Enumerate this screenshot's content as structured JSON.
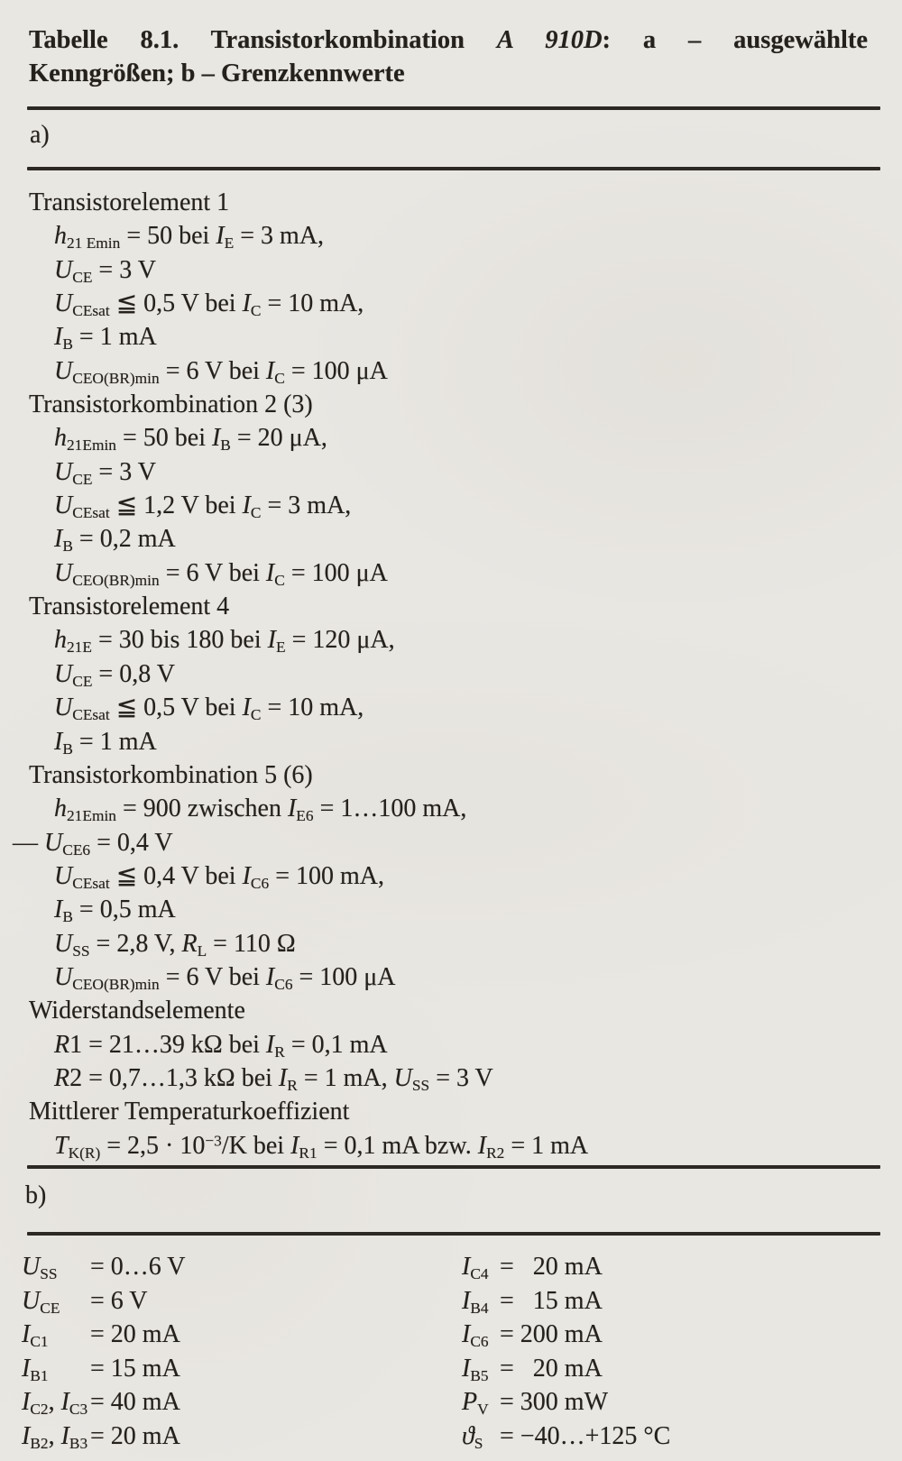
{
  "page": {
    "paper_color": "#e9e7e2",
    "ink_color": "#24211d"
  },
  "caption": {
    "line1_num": "Tabelle 8.1.",
    "line1_text": "Transistorkombination",
    "line1_device": "A 910D",
    "line1_rest": ": a – ausgewählte",
    "line2": "Kenngrößen; b – Grenzkennwerte"
  },
  "section_a": {
    "label": "a)",
    "lines": [
      {
        "style": "head",
        "tokens": [
          [
            "n",
            "Transistorelement 1"
          ]
        ]
      },
      {
        "style": "ind",
        "tokens": [
          [
            "i",
            "h"
          ],
          [
            "sub",
            "21 Emin"
          ],
          [
            "n",
            " = 50 bei "
          ],
          [
            "i",
            "I"
          ],
          [
            "sub",
            "E"
          ],
          [
            "n",
            " = 3 mA,"
          ]
        ]
      },
      {
        "style": "ind",
        "tokens": [
          [
            "i",
            "U"
          ],
          [
            "sub",
            "CE"
          ],
          [
            "n",
            " = 3 V"
          ]
        ]
      },
      {
        "style": "ind",
        "tokens": [
          [
            "i",
            "U"
          ],
          [
            "sub",
            "CEsat"
          ],
          [
            "n",
            " ≦ 0,5 V bei "
          ],
          [
            "i",
            "I"
          ],
          [
            "sub",
            "C"
          ],
          [
            "n",
            " = 10 mA,"
          ]
        ]
      },
      {
        "style": "ind",
        "tokens": [
          [
            "i",
            "I"
          ],
          [
            "sub",
            "B"
          ],
          [
            "n",
            " = 1 mA"
          ]
        ]
      },
      {
        "style": "ind",
        "tokens": [
          [
            "i",
            "U"
          ],
          [
            "sub",
            "CEO(BR)min"
          ],
          [
            "n",
            " = 6 V bei "
          ],
          [
            "i",
            "I"
          ],
          [
            "sub",
            "C"
          ],
          [
            "n",
            " = 100 μA"
          ]
        ]
      },
      {
        "style": "head",
        "tokens": [
          [
            "n",
            "Transistorkombination 2 (3)"
          ]
        ]
      },
      {
        "style": "ind",
        "tokens": [
          [
            "i",
            "h"
          ],
          [
            "sub",
            "21Emin"
          ],
          [
            "n",
            " = 50 bei "
          ],
          [
            "i",
            "I"
          ],
          [
            "sub",
            "B"
          ],
          [
            "n",
            " = 20 μA,"
          ]
        ]
      },
      {
        "style": "ind",
        "tokens": [
          [
            "i",
            "U"
          ],
          [
            "sub",
            "CE"
          ],
          [
            "n",
            " = 3 V"
          ]
        ]
      },
      {
        "style": "ind",
        "tokens": [
          [
            "i",
            "U"
          ],
          [
            "sub",
            "CEsat"
          ],
          [
            "n",
            " ≦ 1,2 V bei "
          ],
          [
            "i",
            "I"
          ],
          [
            "sub",
            "C"
          ],
          [
            "n",
            " = 3 mA,"
          ]
        ]
      },
      {
        "style": "ind",
        "tokens": [
          [
            "i",
            "I"
          ],
          [
            "sub",
            "B"
          ],
          [
            "n",
            " = 0,2 mA"
          ]
        ]
      },
      {
        "style": "ind",
        "tokens": [
          [
            "i",
            "U"
          ],
          [
            "sub",
            "CEO(BR)min"
          ],
          [
            "n",
            " = 6 V bei "
          ],
          [
            "i",
            "I"
          ],
          [
            "sub",
            "C"
          ],
          [
            "n",
            " = 100 μA"
          ]
        ]
      },
      {
        "style": "head",
        "tokens": [
          [
            "n",
            "Transistorelement 4"
          ]
        ]
      },
      {
        "style": "ind",
        "tokens": [
          [
            "i",
            "h"
          ],
          [
            "sub",
            "21E"
          ],
          [
            "n",
            " = 30 bis 180 bei "
          ],
          [
            "i",
            "I"
          ],
          [
            "sub",
            "E"
          ],
          [
            "n",
            " = 120 μA,"
          ]
        ]
      },
      {
        "style": "ind",
        "tokens": [
          [
            "i",
            "U"
          ],
          [
            "sub",
            "CE"
          ],
          [
            "n",
            " = 0,8 V"
          ]
        ]
      },
      {
        "style": "ind",
        "tokens": [
          [
            "i",
            "U"
          ],
          [
            "sub",
            "CEsat"
          ],
          [
            "n",
            " ≦ 0,5 V bei "
          ],
          [
            "i",
            "I"
          ],
          [
            "sub",
            "C"
          ],
          [
            "n",
            " = 10 mA,"
          ]
        ]
      },
      {
        "style": "ind",
        "tokens": [
          [
            "i",
            "I"
          ],
          [
            "sub",
            "B"
          ],
          [
            "n",
            " = 1 mA"
          ]
        ]
      },
      {
        "style": "head",
        "tokens": [
          [
            "n",
            "Transistorkombination 5 (6)"
          ]
        ]
      },
      {
        "style": "ind",
        "tokens": [
          [
            "i",
            "h"
          ],
          [
            "sub",
            "21Emin"
          ],
          [
            "n",
            " = 900 zwischen "
          ],
          [
            "i",
            "I"
          ],
          [
            "sub",
            "E6"
          ],
          [
            "n",
            " = 1…100 mA,"
          ]
        ]
      },
      {
        "style": "dash",
        "tokens": [
          [
            "n",
            "— "
          ],
          [
            "i",
            "U"
          ],
          [
            "sub",
            "CE6"
          ],
          [
            "n",
            " = 0,4 V"
          ]
        ]
      },
      {
        "style": "ind",
        "tokens": [
          [
            "i",
            "U"
          ],
          [
            "sub",
            "CEsat"
          ],
          [
            "n",
            " ≦ 0,4 V bei "
          ],
          [
            "i",
            "I"
          ],
          [
            "sub",
            "C6"
          ],
          [
            "n",
            " = 100 mA,"
          ]
        ]
      },
      {
        "style": "ind",
        "tokens": [
          [
            "i",
            "I"
          ],
          [
            "sub",
            "B"
          ],
          [
            "n",
            " = 0,5 mA"
          ]
        ]
      },
      {
        "style": "ind",
        "tokens": [
          [
            "i",
            "U"
          ],
          [
            "sub",
            "SS"
          ],
          [
            "n",
            " = 2,8 V, "
          ],
          [
            "i",
            "R"
          ],
          [
            "sub",
            "L"
          ],
          [
            "n",
            " = 110 Ω"
          ]
        ]
      },
      {
        "style": "ind",
        "tokens": [
          [
            "i",
            "U"
          ],
          [
            "sub",
            "CEO(BR)min"
          ],
          [
            "n",
            " = 6 V bei "
          ],
          [
            "i",
            "I"
          ],
          [
            "sub",
            "C6"
          ],
          [
            "n",
            " = 100 μA"
          ]
        ]
      },
      {
        "style": "head",
        "tokens": [
          [
            "n",
            "Widerstandselemente"
          ]
        ]
      },
      {
        "style": "ind",
        "tokens": [
          [
            "i",
            "R"
          ],
          [
            "n",
            "1 = 21…39 kΩ bei "
          ],
          [
            "i",
            "I"
          ],
          [
            "sub",
            "R"
          ],
          [
            "n",
            " = 0,1 mA"
          ]
        ]
      },
      {
        "style": "ind",
        "tokens": [
          [
            "i",
            "R"
          ],
          [
            "n",
            "2 = 0,7…1,3 kΩ bei "
          ],
          [
            "i",
            "I"
          ],
          [
            "sub",
            "R"
          ],
          [
            "n",
            " = 1 mA, "
          ],
          [
            "i",
            "U"
          ],
          [
            "sub",
            "SS"
          ],
          [
            "n",
            " = 3 V"
          ]
        ]
      },
      {
        "style": "head",
        "tokens": [
          [
            "n",
            "Mittlerer Temperaturkoeffizient"
          ]
        ]
      },
      {
        "style": "ind",
        "tokens": [
          [
            "i",
            "T"
          ],
          [
            "sub",
            "K(R)"
          ],
          [
            "n",
            " = 2,5 · 10"
          ],
          [
            "sup",
            "−3"
          ],
          [
            "n",
            "/K bei "
          ],
          [
            "i",
            "I"
          ],
          [
            "sub",
            "R1"
          ],
          [
            "n",
            " = 0,1 mA bzw. "
          ],
          [
            "i",
            "I"
          ],
          [
            "sub",
            "R2"
          ],
          [
            "n",
            " = 1 mA"
          ]
        ]
      }
    ]
  },
  "section_b": {
    "label": "b)",
    "left_rows": [
      {
        "label": [
          [
            "i",
            "U"
          ],
          [
            "sub",
            "SS"
          ]
        ],
        "value": "= 0…6 V"
      },
      {
        "label": [
          [
            "i",
            "U"
          ],
          [
            "sub",
            "CE"
          ]
        ],
        "value": "= 6 V"
      },
      {
        "label": [
          [
            "i",
            "I"
          ],
          [
            "sub",
            "C1"
          ]
        ],
        "value": "= 20 mA"
      },
      {
        "label": [
          [
            "i",
            "I"
          ],
          [
            "sub",
            "B1"
          ]
        ],
        "value": "= 15 mA"
      },
      {
        "label": [
          [
            "i",
            "I"
          ],
          [
            "sub",
            "C2"
          ],
          [
            "n",
            ", "
          ],
          [
            "i",
            "I"
          ],
          [
            "sub",
            "C3"
          ]
        ],
        "value": "= 40 mA"
      },
      {
        "label": [
          [
            "i",
            "I"
          ],
          [
            "sub",
            "B2"
          ],
          [
            "n",
            ", "
          ],
          [
            "i",
            "I"
          ],
          [
            "sub",
            "B3"
          ]
        ],
        "value": "= 20 mA"
      }
    ],
    "right_rows": [
      {
        "label": [
          [
            "i",
            "I"
          ],
          [
            "sub",
            "C4"
          ]
        ],
        "value": "=  20 mA"
      },
      {
        "label": [
          [
            "i",
            "I"
          ],
          [
            "sub",
            "B4"
          ]
        ],
        "value": "=  15 mA"
      },
      {
        "label": [
          [
            "i",
            "I"
          ],
          [
            "sub",
            "C6"
          ]
        ],
        "value": "= 200 mA"
      },
      {
        "label": [
          [
            "i",
            "I"
          ],
          [
            "sub",
            "B5"
          ]
        ],
        "value": "=  20 mA"
      },
      {
        "label": [
          [
            "i",
            "P"
          ],
          [
            "sub",
            "V"
          ]
        ],
        "value": "= 300 mW"
      },
      {
        "label": [
          [
            "i",
            "ϑ"
          ],
          [
            "sub",
            "S"
          ]
        ],
        "value": "= −40…+125 °C"
      }
    ]
  }
}
